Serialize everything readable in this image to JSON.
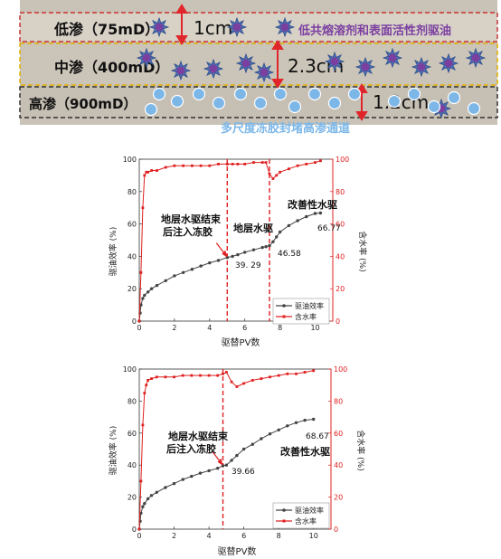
{
  "diagram": {
    "layers": [
      {
        "label": "低渗（75mD）",
        "thickness": "1cm"
      },
      {
        "label": "中渗（400mD）",
        "thickness": "2.3cm"
      },
      {
        "label": "高渗（900mD）",
        "thickness": "1.2cm"
      }
    ],
    "agent_label": "低共熔溶剂和表面活性剂驱油",
    "gel_label": "多尺度冻胶封堵高渗通道",
    "colors": {
      "layer_bg": "#c9c2b6",
      "arrow": "#e0262a",
      "agent": "#7b3fa0",
      "gel": "#7cb7e8",
      "low_border": "#cc3333"
    }
  },
  "chart_data": [
    {
      "type": "line",
      "xlabel": "驱替PV数",
      "ylabel": "驱油效率 (%)",
      "y2label": "含水率 (%)",
      "xlim": [
        0,
        11
      ],
      "ylim": [
        0,
        100
      ],
      "y2lim": [
        0,
        100
      ],
      "xticks": [
        0,
        2,
        4,
        6,
        8,
        10
      ],
      "yticks": [
        0,
        20,
        40,
        60,
        80,
        100
      ],
      "legend": [
        "驱油效率",
        "含水率"
      ],
      "legend_position": "bottom-right",
      "series": [
        {
          "name": "驱油效率",
          "axis": "left",
          "color": "#444444",
          "x": [
            0,
            0.05,
            0.1,
            0.2,
            0.3,
            0.5,
            0.7,
            1,
            1.5,
            2,
            2.5,
            3,
            3.5,
            4,
            4.5,
            5,
            5.3,
            5.6,
            6,
            6.5,
            7,
            7.2,
            7.4,
            7.6,
            7.8,
            8,
            8.5,
            9,
            9.5,
            10,
            10.3
          ],
          "y": [
            0,
            5,
            10,
            14,
            16,
            18,
            20,
            22,
            25,
            28,
            30,
            32,
            34,
            36,
            37.5,
            39.29,
            40,
            41,
            42.5,
            44,
            45.5,
            46,
            46.58,
            49,
            52,
            55,
            59,
            62,
            64.5,
            66.5,
            66.77
          ]
        },
        {
          "name": "含水率",
          "axis": "right",
          "color": "#e02020",
          "x": [
            0,
            0.1,
            0.2,
            0.3,
            0.4,
            0.5,
            0.7,
            1,
            1.5,
            2,
            2.5,
            3,
            3.5,
            4,
            4.5,
            5,
            5.3,
            5.6,
            6,
            6.5,
            7,
            7.2,
            7.4,
            7.6,
            7.8,
            8,
            8.5,
            9,
            9.5,
            10,
            10.3
          ],
          "y": [
            0,
            30,
            70,
            90,
            92,
            92,
            93,
            93,
            95,
            96,
            96,
            96,
            96,
            96,
            97,
            97,
            97,
            97,
            97,
            98,
            98,
            98,
            91,
            88,
            90,
            92,
            94,
            96,
            97,
            98,
            99
          ]
        }
      ],
      "annotations": {
        "stage1_text": "地层水驱结束\n后注入冻胶",
        "stage2_text": "地层水驱",
        "stage3_text": "改善性水驱",
        "value_labels": [
          "39. 29",
          "46.58",
          "66.77"
        ]
      },
      "markers_x": [
        5,
        7.4
      ]
    },
    {
      "type": "line",
      "xlabel": "驱替PV数",
      "ylabel": "驱油效率 (%)",
      "y2label": "含水率 (%)",
      "xlim": [
        0,
        11
      ],
      "ylim": [
        0,
        100
      ],
      "y2lim": [
        0,
        100
      ],
      "xticks": [
        0,
        2,
        4,
        6,
        8,
        10
      ],
      "yticks": [
        0,
        20,
        40,
        60,
        80,
        100
      ],
      "legend": [
        "驱油效率",
        "含水率"
      ],
      "legend_position": "bottom-right",
      "series": [
        {
          "name": "驱油效率",
          "axis": "left",
          "color": "#444444",
          "x": [
            0,
            0.05,
            0.1,
            0.2,
            0.3,
            0.5,
            0.7,
            1,
            1.5,
            2,
            2.5,
            3,
            3.5,
            4,
            4.5,
            4.8,
            5,
            5.3,
            5.6,
            6,
            6.5,
            7,
            7.5,
            8,
            8.5,
            9,
            9.5,
            10
          ],
          "y": [
            0,
            5,
            10,
            14,
            16,
            19,
            21,
            23,
            26,
            28.5,
            31,
            33,
            35,
            36.5,
            38,
            39.66,
            40,
            43,
            46,
            50,
            53,
            56.5,
            59.5,
            62,
            64.5,
            66.5,
            68,
            68.67
          ]
        },
        {
          "name": "含水率",
          "axis": "right",
          "color": "#e02020",
          "x": [
            0,
            0.1,
            0.2,
            0.3,
            0.4,
            0.5,
            0.7,
            1,
            1.5,
            2,
            2.5,
            3,
            3.5,
            4,
            4.5,
            4.8,
            5,
            5.3,
            5.6,
            6,
            6.5,
            7,
            7.5,
            8,
            8.5,
            9,
            9.5,
            10
          ],
          "y": [
            0,
            30,
            65,
            85,
            90,
            93,
            94,
            95,
            95,
            95,
            96,
            96,
            96,
            96,
            96,
            97,
            98,
            92,
            89,
            91,
            93,
            94,
            95,
            96,
            97,
            97,
            98,
            99
          ]
        }
      ],
      "annotations": {
        "stage1_text": "地层水驱结束\n后注入冻胶",
        "stage3_text": "改善性水驱",
        "value_labels": [
          "39.66",
          "68.67"
        ]
      },
      "markers_x": [
        4.8
      ]
    }
  ]
}
